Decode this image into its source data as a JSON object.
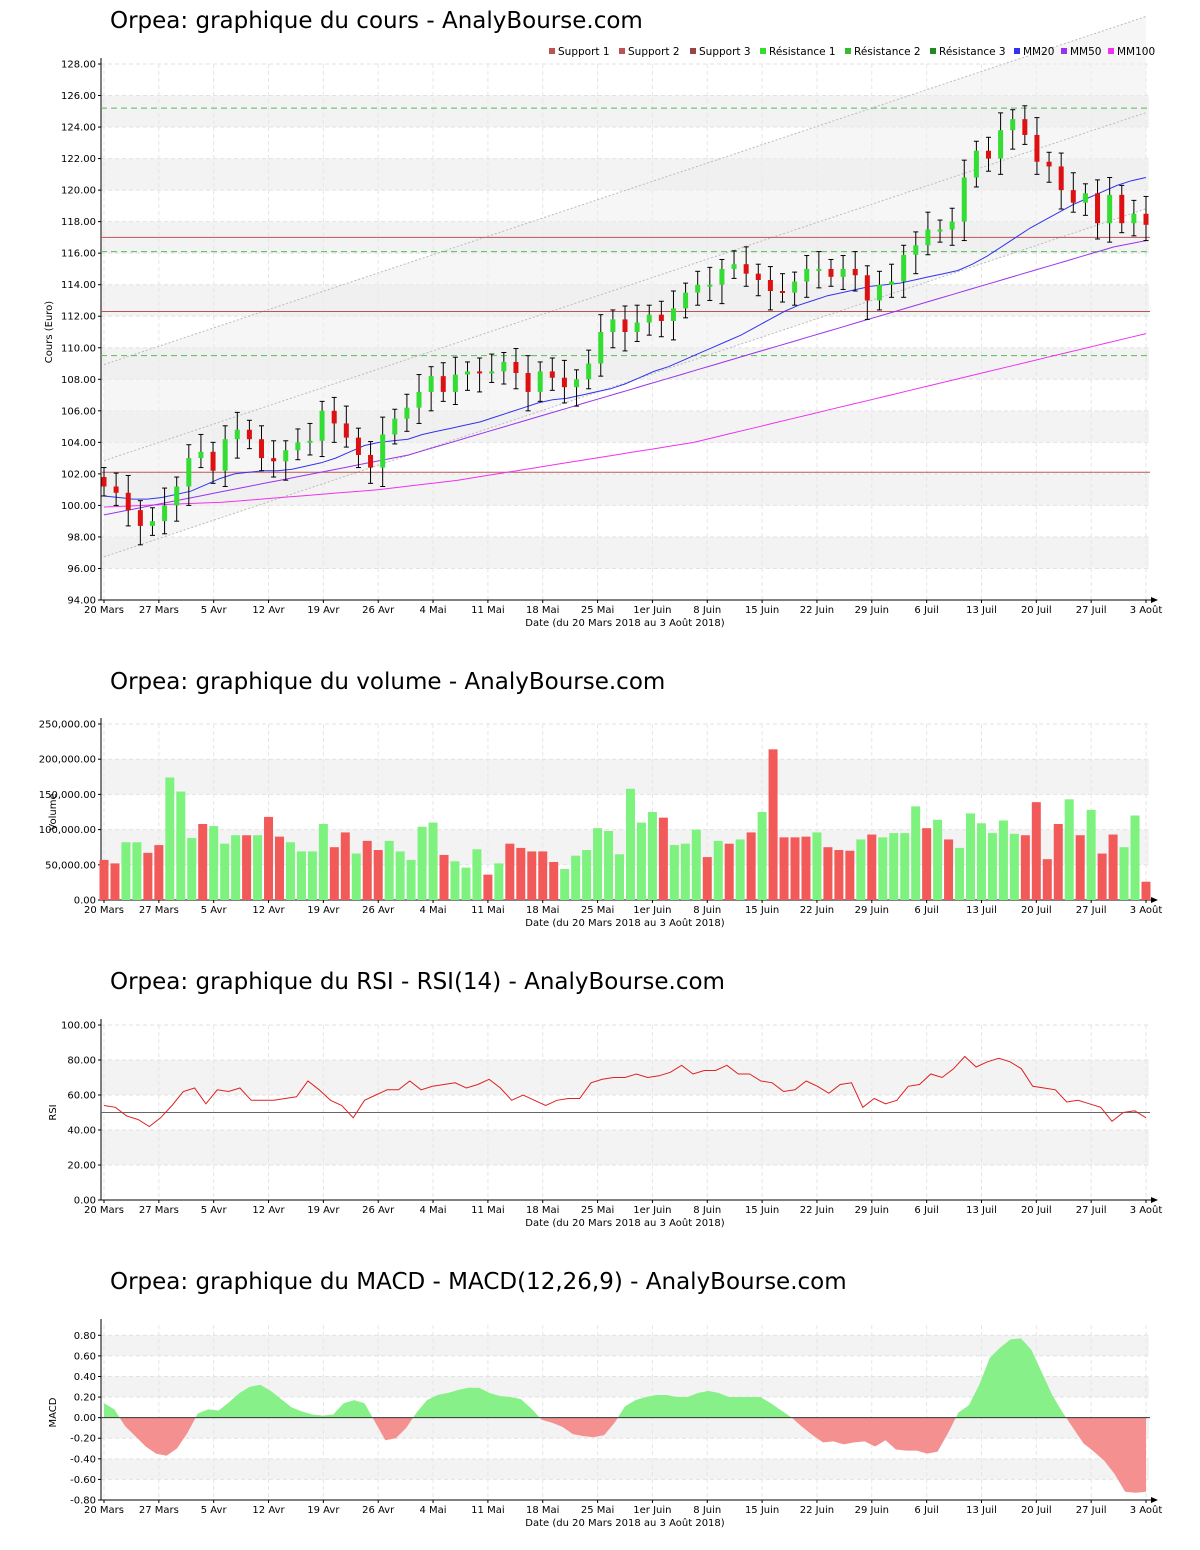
{
  "x_ticks": [
    "20 Mars",
    "27 Mars",
    "5 Avr",
    "12 Avr",
    "19 Avr",
    "26 Avr",
    "4 Mai",
    "11 Mai",
    "18 Mai",
    "25 Mai",
    "1er Juin",
    "8 Juin",
    "15 Juin",
    "22 Juin",
    "29 Juin",
    "6 Juil",
    "13 Juil",
    "20 Juil",
    "27 Juil",
    "3 Août"
  ],
  "x_axis_label": "Date (du 20 Mars 2018 au 3 Août 2018)",
  "colors": {
    "up": "#33dd33",
    "down": "#dd1111",
    "vol_up": "#7ef27e",
    "vol_down": "#f25a5a",
    "mm20": "#3333ee",
    "mm50": "#9933ee",
    "mm100": "#ee33ee",
    "support": "#bb5555",
    "resistance": "#55bb55",
    "rsi": "#dd2222",
    "macd_pos": "#88f088",
    "macd_neg": "#f59090"
  },
  "chart_data": [
    {
      "type": "candlestick",
      "title": "Orpea: graphique du cours - AnalyBourse.com",
      "ylabel": "Cours (Euro)",
      "xlabel": "Date (du 20 Mars 2018 au 3 Août 2018)",
      "ylim": [
        94,
        128
      ],
      "y_ticks": [
        "94.00",
        "96.00",
        "98.00",
        "100.00",
        "102.00",
        "104.00",
        "106.00",
        "108.00",
        "110.00",
        "112.00",
        "114.00",
        "116.00",
        "118.00",
        "120.00",
        "122.00",
        "124.00",
        "126.00",
        "128.00"
      ],
      "legend": [
        "Support 1",
        "Support 2",
        "Support 3",
        "Résistance 1",
        "Résistance 2",
        "Résistance 3",
        "MM20",
        "MM50",
        "MM100"
      ],
      "levels": {
        "support_1": 112.3,
        "support_2": 117.0,
        "support_3": 102.1,
        "resistance_1": 116.1,
        "resistance_2": 109.5,
        "resistance_3": 125.2
      },
      "close": [
        101.2,
        100.8,
        99.7,
        98.7,
        99.0,
        100.0,
        101.2,
        103.0,
        103.4,
        102.2,
        104.2,
        104.8,
        104.2,
        103.0,
        102.8,
        103.5,
        104.0,
        104.1,
        106.0,
        105.2,
        104.3,
        103.2,
        102.4,
        104.5,
        105.5,
        106.2,
        107.2,
        108.2,
        107.2,
        108.3,
        108.5,
        108.4,
        108.5,
        109.1,
        108.4,
        107.2,
        108.5,
        108.1,
        107.5,
        108.0,
        109.0,
        111.0,
        111.8,
        111.0,
        111.6,
        112.1,
        111.7,
        112.5,
        113.5,
        114.0,
        114.0,
        115.0,
        115.3,
        114.7,
        114.3,
        113.6,
        113.5,
        114.2,
        115.0,
        115.0,
        114.5,
        115.0,
        114.6,
        113.0,
        114.0,
        114.2,
        115.9,
        116.5,
        117.5,
        117.5,
        118.0,
        120.8,
        122.5,
        122.0,
        123.8,
        124.5,
        123.5,
        121.8,
        121.5,
        120.0,
        119.2,
        119.8,
        117.9,
        119.7,
        117.9,
        118.5,
        117.8
      ],
      "mm20": [
        100.6,
        100.5,
        100.4,
        100.4,
        100.5,
        100.7,
        100.9,
        101.3,
        101.7,
        102.0,
        102.1,
        102.2,
        102.2,
        102.3,
        102.5,
        102.7,
        103.0,
        103.4,
        103.8,
        104.0,
        104.1,
        104.2,
        104.5,
        104.7,
        104.9,
        105.1,
        105.3,
        105.6,
        105.9,
        106.2,
        106.5,
        106.7,
        106.8,
        107.0,
        107.2,
        107.4,
        107.7,
        108.1,
        108.5,
        108.8,
        109.2,
        109.6,
        110.0,
        110.4,
        110.8,
        111.3,
        111.8,
        112.3,
        112.7,
        113.0,
        113.3,
        113.5,
        113.7,
        113.9,
        114.0,
        114.1,
        114.3,
        114.5,
        114.7,
        114.9,
        115.3,
        115.8,
        116.4,
        117.0,
        117.6,
        118.1,
        118.6,
        119.1,
        119.5,
        119.9,
        120.3,
        120.6,
        120.8
      ],
      "mm50": [
        99.4,
        99.6,
        99.8,
        100.0,
        100.2,
        100.4,
        100.6,
        100.8,
        101.0,
        101.2,
        101.4,
        101.6,
        101.8,
        102.0,
        102.2,
        102.4,
        102.6,
        102.8,
        103.0,
        103.2,
        103.5,
        103.8,
        104.1,
        104.4,
        104.7,
        105.0,
        105.3,
        105.6,
        105.9,
        106.2,
        106.5,
        106.8,
        107.1,
        107.4,
        107.7,
        108.0,
        108.3,
        108.6,
        108.9,
        109.2,
        109.5,
        109.8,
        110.1,
        110.4,
        110.7,
        111.0,
        111.3,
        111.6,
        111.9,
        112.2,
        112.5,
        112.8,
        113.1,
        113.4,
        113.7,
        114.0,
        114.3,
        114.6,
        114.9,
        115.2,
        115.5,
        115.8,
        116.1,
        116.4,
        116.6,
        116.8
      ],
      "mm100": [
        99.9,
        99.95,
        100.0,
        100.05,
        100.1,
        100.15,
        100.2,
        100.3,
        100.4,
        100.5,
        100.6,
        100.7,
        100.8,
        100.9,
        101.0,
        101.15,
        101.3,
        101.45,
        101.6,
        101.8,
        102.0,
        102.2,
        102.4,
        102.6,
        102.8,
        103.0,
        103.2,
        103.4,
        103.6,
        103.8,
        104.0,
        104.3,
        104.6,
        104.9,
        105.2,
        105.5,
        105.8,
        106.1,
        106.4,
        106.7,
        107.0,
        107.3,
        107.6,
        107.9,
        108.2,
        108.5,
        108.8,
        109.1,
        109.4,
        109.7,
        110.0,
        110.3,
        110.6,
        110.9
      ]
    },
    {
      "type": "bar",
      "title": "Orpea: graphique du volume - AnalyBourse.com",
      "ylabel": "Volume",
      "xlabel": "Date (du 20 Mars 2018 au 3 Août 2018)",
      "ylim": [
        0,
        250000
      ],
      "y_ticks": [
        "0.00",
        "50,000.00",
        "100,000.00",
        "150,000.00",
        "200,000.00",
        "250,000.00"
      ],
      "values": [
        57000,
        52000,
        82000,
        82000,
        67000,
        78000,
        174000,
        154000,
        88000,
        108000,
        105000,
        80000,
        92000,
        92000,
        92000,
        118000,
        90000,
        82000,
        69000,
        69000,
        108000,
        75000,
        96000,
        66000,
        84000,
        71000,
        84000,
        69000,
        57000,
        104000,
        110000,
        64000,
        55000,
        46000,
        72000,
        36000,
        52000,
        80000,
        74000,
        69000,
        69000,
        54000,
        44000,
        63000,
        71000,
        102000,
        98000,
        65000,
        158000,
        110000,
        125000,
        117000,
        78000,
        80000,
        100000,
        61000,
        84000,
        80000,
        86000,
        96000,
        125000,
        214000,
        89000,
        89000,
        90000,
        96000,
        75000,
        71000,
        70000,
        86000,
        93000,
        89000,
        95000,
        95000,
        133000,
        102000,
        114000,
        86000,
        74000,
        123000,
        109000,
        95000,
        113000,
        94000,
        92000,
        139000,
        58000,
        108000,
        143000,
        92000,
        128000,
        66000,
        93000,
        75000,
        120000,
        26000
      ],
      "up": [
        0,
        0,
        1,
        1,
        0,
        0,
        1,
        1,
        1,
        0,
        1,
        1,
        1,
        0,
        1,
        0,
        0,
        1,
        1,
        1,
        1,
        0,
        0,
        1,
        0,
        0,
        1,
        1,
        1,
        1,
        1,
        0,
        1,
        1,
        1,
        0,
        1,
        0,
        0,
        0,
        0,
        0,
        1,
        1,
        1,
        1,
        1,
        1,
        1,
        1,
        1,
        0,
        1,
        1,
        1,
        0,
        1,
        0,
        1,
        0,
        1,
        0,
        0,
        0,
        0,
        1,
        0,
        0,
        0,
        1,
        0,
        1,
        1,
        1,
        1,
        0,
        1,
        0,
        1,
        1,
        1,
        1,
        1,
        1,
        0,
        0,
        0,
        0,
        1,
        0,
        1,
        0,
        0,
        1,
        1,
        0
      ]
    },
    {
      "type": "line",
      "title": "Orpea: graphique du RSI - RSI(14) - AnalyBourse.com",
      "ylabel": "RSI",
      "xlabel": "Date (du 20 Mars 2018 au 3 Août 2018)",
      "ylim": [
        0,
        100
      ],
      "y_ticks": [
        "0.00",
        "20.00",
        "40.00",
        "60.00",
        "80.00",
        "100.00"
      ],
      "reference": 50,
      "values": [
        54,
        53,
        48,
        46,
        42,
        47,
        54,
        62,
        64,
        55,
        63,
        62,
        64,
        57,
        57,
        57,
        58,
        59,
        68,
        63,
        57,
        54,
        47,
        57,
        60,
        63,
        63,
        68,
        63,
        65,
        66,
        67,
        64,
        66,
        69,
        64,
        57,
        60,
        57,
        54,
        57,
        58,
        58,
        67,
        69,
        70,
        70,
        72,
        70,
        71,
        73,
        77,
        72,
        74,
        74,
        77,
        72,
        72,
        68,
        67,
        62,
        63,
        68,
        65,
        61,
        66,
        67,
        53,
        58,
        55,
        57,
        65,
        66,
        72,
        70,
        75,
        82,
        76,
        79,
        81,
        79,
        75,
        65,
        64,
        63,
        56,
        57,
        55,
        53,
        45,
        50,
        51,
        47
      ]
    },
    {
      "type": "area",
      "title": "Orpea: graphique du MACD - MACD(12,26,9) - AnalyBourse.com",
      "ylabel": "MACD",
      "xlabel": "Date (du 20 Mars 2018 au 3 Août 2018)",
      "ylim": [
        -0.8,
        0.9
      ],
      "y_ticks": [
        "-0.80",
        "-0.60",
        "-0.40",
        "-0.20",
        "0.00",
        "0.20",
        "0.40",
        "0.60",
        "0.80"
      ],
      "values": [
        0.14,
        0.08,
        -0.08,
        -0.18,
        -0.28,
        -0.35,
        -0.37,
        -0.3,
        -0.15,
        0.04,
        0.08,
        0.07,
        0.15,
        0.24,
        0.3,
        0.32,
        0.26,
        0.18,
        0.1,
        0.06,
        0.03,
        0.02,
        0.03,
        0.14,
        0.17,
        0.14,
        -0.04,
        -0.22,
        -0.2,
        -0.1,
        0.05,
        0.17,
        0.22,
        0.24,
        0.27,
        0.29,
        0.29,
        0.24,
        0.21,
        0.2,
        0.18,
        0.09,
        -0.02,
        -0.05,
        -0.09,
        -0.16,
        -0.18,
        -0.19,
        -0.17,
        -0.05,
        0.11,
        0.17,
        0.2,
        0.22,
        0.22,
        0.2,
        0.2,
        0.24,
        0.26,
        0.24,
        0.2,
        0.2,
        0.2,
        0.2,
        0.14,
        0.07,
        0.0,
        -0.09,
        -0.17,
        -0.24,
        -0.23,
        -0.26,
        -0.24,
        -0.23,
        -0.28,
        -0.22,
        -0.31,
        -0.32,
        -0.32,
        -0.35,
        -0.33,
        -0.15,
        0.05,
        0.12,
        0.32,
        0.58,
        0.68,
        0.76,
        0.77,
        0.66,
        0.44,
        0.22,
        0.05,
        -0.1,
        -0.25,
        -0.33,
        -0.42,
        -0.55,
        -0.72,
        -0.73,
        -0.72
      ]
    }
  ]
}
